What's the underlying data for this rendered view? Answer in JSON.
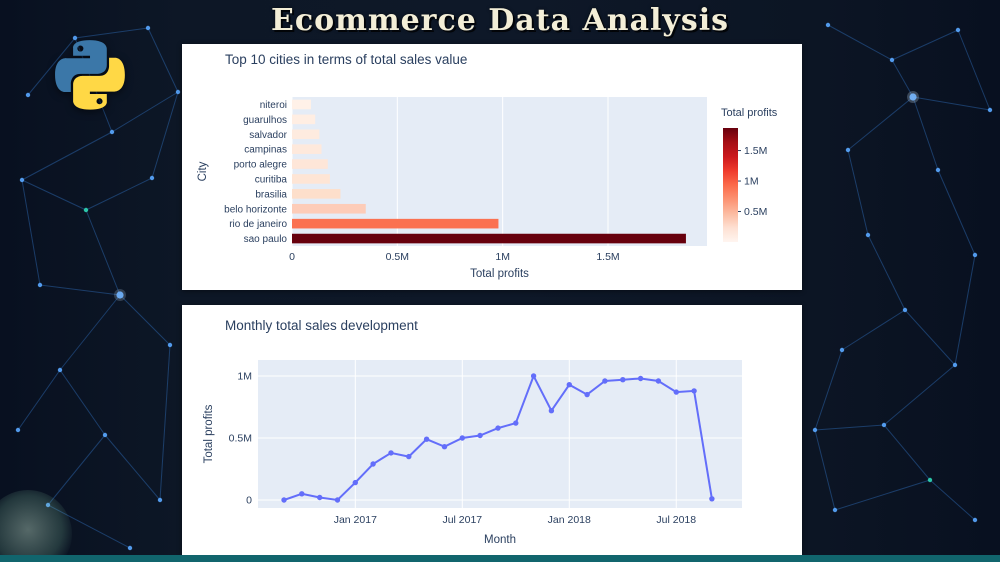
{
  "page": {
    "title": "Ecommerce Data Analysis",
    "accent_colors": {
      "background": "#0d1726",
      "bottom_bar": "#11656d",
      "title_text": "#f3eed7",
      "network_line": "#2c66ad",
      "network_dot": "#5aa7ff"
    }
  },
  "chart_data": [
    {
      "type": "bar",
      "orientation": "horizontal",
      "title": "Top 10 cities in terms of total sales value",
      "xlabel": "Total profits",
      "ylabel": "City",
      "categories_top_to_bottom": [
        "niteroi",
        "guarulhos",
        "salvador",
        "campinas",
        "porto alegre",
        "curitiba",
        "brasilia",
        "belo horizonte",
        "rio de janeiro",
        "sao paulo"
      ],
      "values_M": [
        0.09,
        0.11,
        0.13,
        0.14,
        0.17,
        0.18,
        0.23,
        0.35,
        0.98,
        1.87
      ],
      "bar_colors": [
        "#fff1e8",
        "#ffeee3",
        "#feebdf",
        "#fee9dc",
        "#fee6d8",
        "#fee5d5",
        "#fddfcb",
        "#fdccb8",
        "#fb7151",
        "#67000d"
      ],
      "x_ticks": [
        "0",
        "0.5M",
        "1M",
        "1.5M"
      ],
      "x_tick_values_M": [
        0,
        0.5,
        1,
        1.5
      ],
      "xlim_M": [
        0,
        1.97
      ],
      "plot_bg": "#e5ecf6",
      "grid_color": "#ffffff",
      "tick_color": "#2a3f5f",
      "colorbar": {
        "title": "Total profits",
        "ticks": [
          "1.5M",
          "1M",
          "0.5M"
        ],
        "tick_values_M": [
          1.5,
          1,
          0.5
        ],
        "max_M": 1.87,
        "gradient": [
          "#67000d",
          "#a50f15",
          "#cb181d",
          "#ef3b2c",
          "#fb6a4a",
          "#fc9272",
          "#fcbba1",
          "#fee0d2",
          "#fff5f0"
        ]
      }
    },
    {
      "type": "line",
      "title": "Monthly total sales development",
      "xlabel": "Month",
      "ylabel": "Total profits",
      "months": [
        "Sep 2016",
        "Oct 2016",
        "Nov 2016",
        "Dec 2016",
        "Jan 2017",
        "Feb 2017",
        "Mar 2017",
        "Apr 2017",
        "May 2017",
        "Jun 2017",
        "Jul 2017",
        "Aug 2017",
        "Sep 2017",
        "Oct 2017",
        "Nov 2017",
        "Dec 2017",
        "Jan 2018",
        "Feb 2018",
        "Mar 2018",
        "Apr 2018",
        "May 2018",
        "Jun 2018",
        "Jul 2018",
        "Aug 2018",
        "Sep 2018"
      ],
      "values_M": [
        0.0,
        0.05,
        0.02,
        0.0,
        0.14,
        0.29,
        0.38,
        0.35,
        0.49,
        0.43,
        0.5,
        0.52,
        0.58,
        0.62,
        1.0,
        0.72,
        0.93,
        0.85,
        0.96,
        0.97,
        0.98,
        0.96,
        0.87,
        0.88,
        0.01
      ],
      "x_ticks": [
        "Jan 2017",
        "Jul 2017",
        "Jan 2018",
        "Jul 2018"
      ],
      "x_tick_indices": [
        4,
        10,
        16,
        22
      ],
      "y_ticks": [
        "0",
        "0.5M",
        "1M"
      ],
      "y_tick_values_M": [
        0,
        0.5,
        1
      ],
      "ylim_M": [
        -0.08,
        1.13
      ],
      "line_color": "#636efa",
      "marker": "circle",
      "plot_bg": "#e5ecf6",
      "grid_color": "#ffffff",
      "tick_color": "#2a3f5f"
    }
  ]
}
